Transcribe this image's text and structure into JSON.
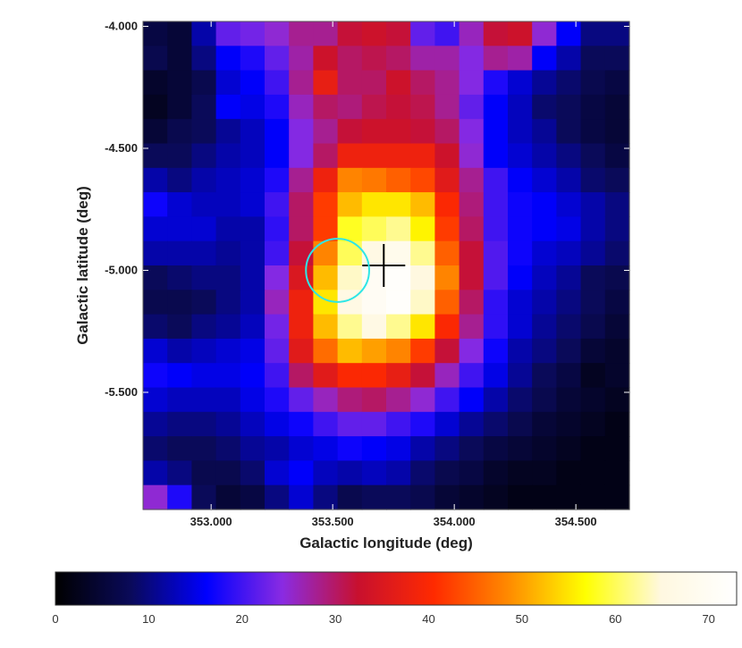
{
  "chart_data": {
    "type": "heatmap",
    "title": "",
    "xlabel": "Galactic longitude (deg)",
    "ylabel": "Galactic latitude (deg)",
    "xlim": [
      352.72,
      354.72
    ],
    "ylim": [
      -5.98,
      -3.98
    ],
    "x_ticks": [
      353.0,
      353.5,
      354.0,
      354.5
    ],
    "x_tick_labels": [
      "353.000",
      "353.500",
      "354.000",
      "354.500"
    ],
    "y_ticks": [
      -4.0,
      -4.5,
      -5.0,
      -5.5
    ],
    "y_tick_labels": [
      "-4.000",
      "-4.500",
      "-5.000",
      "-5.500"
    ],
    "colorbar": {
      "min": 0,
      "max": 73,
      "ticks": [
        0,
        10,
        20,
        30,
        40,
        50,
        60,
        70
      ],
      "tick_labels": [
        "0",
        "10",
        "20",
        "30",
        "40",
        "50",
        "60",
        "70"
      ],
      "colormap": [
        "#000000",
        "#0a0a5a",
        "#0000ff",
        "#8a2be2",
        "#c8102e",
        "#ff2a00",
        "#ff8c00",
        "#ffff00",
        "#fff8e0",
        "#ffffff"
      ]
    },
    "grid_cols": 20,
    "grid_rows": 20,
    "values": [
      [
        6,
        5,
        12,
        22,
        23,
        25,
        28,
        28,
        32,
        33,
        32,
        22,
        20,
        26,
        32,
        33,
        25,
        16,
        10,
        10
      ],
      [
        7,
        5,
        10,
        16,
        18,
        22,
        27,
        33,
        30,
        31,
        30,
        27,
        27,
        24,
        28,
        27,
        16,
        12,
        8,
        8
      ],
      [
        4,
        5,
        7,
        14,
        16,
        20,
        28,
        37,
        30,
        30,
        33,
        30,
        28,
        24,
        18,
        14,
        11,
        9,
        7,
        6
      ],
      [
        3,
        5,
        8,
        16,
        15,
        18,
        26,
        30,
        29,
        31,
        32,
        31,
        28,
        22,
        16,
        13,
        9,
        8,
        6,
        5
      ],
      [
        5,
        7,
        8,
        11,
        13,
        16,
        24,
        28,
        32,
        33,
        33,
        32,
        30,
        24,
        16,
        13,
        11,
        8,
        6,
        5
      ],
      [
        8,
        8,
        10,
        12,
        13,
        16,
        24,
        30,
        38,
        38,
        38,
        38,
        33,
        25,
        16,
        14,
        12,
        10,
        8,
        6
      ],
      [
        12,
        10,
        12,
        13,
        14,
        18,
        28,
        38,
        48,
        47,
        45,
        43,
        36,
        28,
        20,
        16,
        14,
        12,
        9,
        8
      ],
      [
        17,
        14,
        13,
        13,
        14,
        20,
        30,
        42,
        52,
        55,
        55,
        52,
        40,
        29,
        20,
        17,
        16,
        14,
        12,
        10
      ],
      [
        14,
        14,
        14,
        12,
        12,
        19,
        30,
        42,
        58,
        60,
        62,
        56,
        42,
        30,
        20,
        17,
        16,
        15,
        12,
        10
      ],
      [
        12,
        12,
        12,
        11,
        12,
        20,
        32,
        48,
        60,
        66,
        68,
        62,
        45,
        32,
        21,
        17,
        14,
        13,
        11,
        9
      ],
      [
        8,
        9,
        10,
        10,
        12,
        24,
        35,
        52,
        64,
        70,
        72,
        65,
        48,
        32,
        21,
        16,
        13,
        11,
        8,
        7
      ],
      [
        7,
        7,
        8,
        10,
        12,
        26,
        38,
        55,
        66,
        70,
        72,
        64,
        45,
        30,
        19,
        14,
        12,
        10,
        8,
        6
      ],
      [
        9,
        8,
        10,
        11,
        13,
        23,
        38,
        52,
        62,
        66,
        62,
        55,
        40,
        28,
        19,
        14,
        11,
        9,
        7,
        5
      ],
      [
        14,
        12,
        13,
        14,
        15,
        22,
        36,
        46,
        52,
        50,
        48,
        42,
        32,
        24,
        17,
        12,
        10,
        8,
        5,
        4
      ],
      [
        17,
        16,
        15,
        15,
        16,
        20,
        30,
        36,
        40,
        40,
        37,
        32,
        26,
        20,
        15,
        11,
        8,
        6,
        3,
        4
      ],
      [
        14,
        13,
        13,
        13,
        15,
        18,
        22,
        26,
        29,
        30,
        28,
        25,
        20,
        16,
        12,
        9,
        7,
        5,
        4,
        3
      ],
      [
        11,
        10,
        10,
        11,
        13,
        15,
        17,
        20,
        22,
        22,
        20,
        18,
        14,
        11,
        9,
        7,
        5,
        4,
        3,
        2
      ],
      [
        9,
        8,
        8,
        9,
        11,
        12,
        14,
        15,
        17,
        16,
        15,
        12,
        10,
        8,
        6,
        5,
        4,
        3,
        2,
        2
      ],
      [
        12,
        10,
        7,
        7,
        9,
        14,
        16,
        13,
        12,
        13,
        12,
        9,
        7,
        6,
        4,
        3,
        3,
        2,
        2,
        2
      ],
      [
        25,
        18,
        8,
        5,
        6,
        10,
        14,
        10,
        7,
        8,
        8,
        7,
        5,
        4,
        3,
        2,
        2,
        2,
        2,
        2
      ]
    ],
    "markers": [
      {
        "type": "cross",
        "x": 353.71,
        "y": -4.98,
        "color": "#000000"
      },
      {
        "type": "circle",
        "x": 353.52,
        "y": -5.0,
        "radius_deg": 0.13,
        "color": "#2ee6e6"
      }
    ]
  }
}
